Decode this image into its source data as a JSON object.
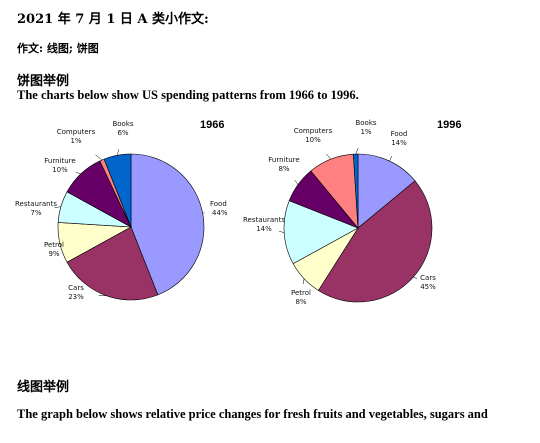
{
  "doc": {
    "title": "2021 年 7 月 1 日 A 类小作文:",
    "subtitle": "作文:    线图; 饼图",
    "section_pie": "饼图举例",
    "pie_intro": "The charts below show US spending patterns from 1966 to 1996.",
    "section_line": "线图举例",
    "line_intro": "The graph below shows relative price changes for fresh fruits and vegetables, sugars and"
  },
  "chart_data": [
    {
      "type": "pie",
      "title": "1966",
      "slices": [
        {
          "label": "Food",
          "value": 44,
          "color": "#9999ff"
        },
        {
          "label": "Cars",
          "value": 23,
          "color": "#993366"
        },
        {
          "label": "Petrol",
          "value": 9,
          "color": "#ffffcc"
        },
        {
          "label": "Restaurants",
          "value": 7,
          "color": "#ccffff"
        },
        {
          "label": "Furniture",
          "value": 10,
          "color": "#660066"
        },
        {
          "label": "Computers",
          "value": 1,
          "color": "#ff8080"
        },
        {
          "label": "Books",
          "value": 6,
          "color": "#0066cc"
        }
      ]
    },
    {
      "type": "pie",
      "title": "1996",
      "slices": [
        {
          "label": "Food",
          "value": 14,
          "color": "#9999ff"
        },
        {
          "label": "Cars",
          "value": 45,
          "color": "#993366"
        },
        {
          "label": "Petrol",
          "value": 8,
          "color": "#ffffcc"
        },
        {
          "label": "Restaurants",
          "value": 14,
          "color": "#ccffff"
        },
        {
          "label": "Furniture",
          "value": 8,
          "color": "#660066"
        },
        {
          "label": "Computers",
          "value": 10,
          "color": "#ff8080"
        },
        {
          "label": "Books",
          "value": 1,
          "color": "#0066cc"
        }
      ]
    }
  ]
}
